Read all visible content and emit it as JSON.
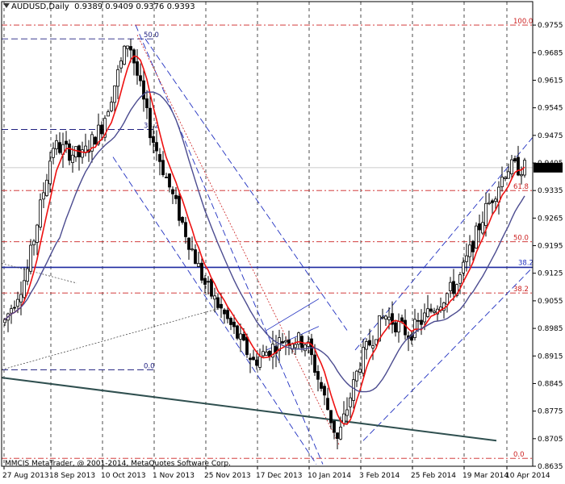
{
  "header": {
    "symbol": "AUDUSD,Daily",
    "ohlc": "0.9389 0.9409 0.9376 0.9393"
  },
  "footer": {
    "copyright": "MMCIS MetaTrader, @ 2001-2014, MetaQuotes Software Corp."
  },
  "current_price_label": "0.9393",
  "colors": {
    "background": "#ffffff",
    "candles": "#000000",
    "fast_ma": "#ee1111",
    "slow_ma": "#4b4b8f",
    "fib": "#cc2020",
    "channel": "#2030c0",
    "price_line": "#1e2aa0"
  },
  "chart_data": {
    "type": "candlestick",
    "title": "AUDUSD,Daily",
    "xlabel": "",
    "ylabel": "",
    "ylim": [
      0.8635,
      0.979
    ],
    "grid": true,
    "x_ticks": [
      "27 Aug 2013",
      "18 Sep 2013",
      "10 Oct 2013",
      "1 Nov 2013",
      "25 Nov 2013",
      "17 Dec 2013",
      "10 Jan 2014",
      "3 Feb 2014",
      "25 Feb 2014",
      "19 Mar 2014",
      "10 Apr 2014"
    ],
    "y_ticks": [
      0.9755,
      0.9685,
      0.9615,
      0.9545,
      0.9475,
      0.9405,
      0.9335,
      0.9265,
      0.9195,
      0.9125,
      0.9055,
      0.8985,
      0.8915,
      0.8845,
      0.8775,
      0.8705,
      0.8635
    ],
    "price_path": [
      [
        "27 Aug 2013",
        0.9
      ],
      [
        "6 Sep 2013",
        0.912
      ],
      [
        "18 Sep 2013",
        0.945
      ],
      [
        "1 Oct 2013",
        0.942
      ],
      [
        "10 Oct 2013",
        0.95
      ],
      [
        "22 Oct 2013",
        0.972
      ],
      [
        "1 Nov 2013",
        0.948
      ],
      [
        "12 Nov 2013",
        0.93
      ],
      [
        "25 Nov 2013",
        0.91
      ],
      [
        "6 Dec 2013",
        0.9
      ],
      [
        "17 Dec 2013",
        0.89
      ],
      [
        "31 Dec 2013",
        0.896
      ],
      [
        "10 Jan 2014",
        0.895
      ],
      [
        "24 Jan 2014",
        0.87
      ],
      [
        "3 Feb 2014",
        0.89
      ],
      [
        "14 Feb 2014",
        0.902
      ],
      [
        "25 Feb 2014",
        0.897
      ],
      [
        "10 Mar 2014",
        0.905
      ],
      [
        "19 Mar 2014",
        0.91
      ],
      [
        "31 Mar 2014",
        0.928
      ],
      [
        "10 Apr 2014",
        0.9393
      ]
    ],
    "fib_levels": [
      {
        "label": "100.0",
        "value": 0.9755
      },
      {
        "label": "61.8",
        "value": 0.9335
      },
      {
        "label": "50.0",
        "value": 0.9205
      },
      {
        "label": "38.2",
        "value": 0.9075
      },
      {
        "label": "0.0",
        "value": 0.8655
      }
    ],
    "fib_left_labels": [
      {
        "label": "50.0",
        "value": 0.972
      },
      {
        "label": "38.2",
        "value": 0.949
      },
      {
        "label": "0.0",
        "value": 0.888
      }
    ],
    "horizontal_line": {
      "label": "38.2",
      "value": 0.914
    },
    "current_price": 0.9393
  }
}
